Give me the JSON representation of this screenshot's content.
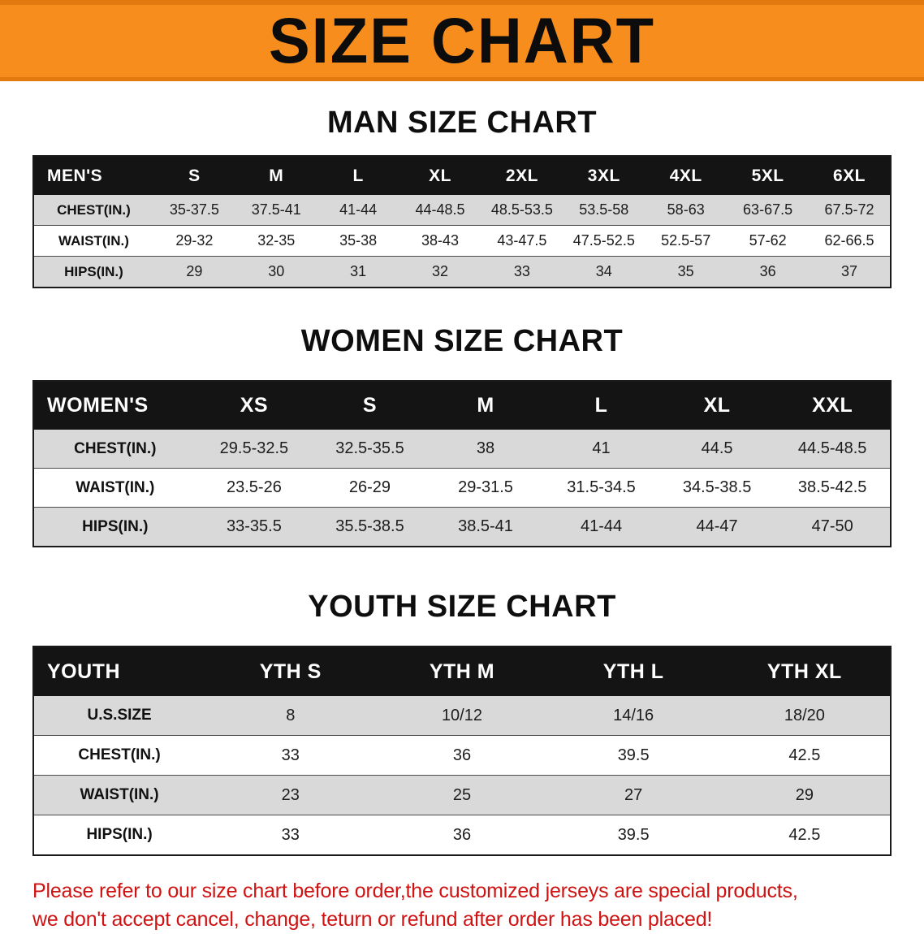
{
  "banner": {
    "title": "SIZE CHART"
  },
  "theme": {
    "banner_orange": "#f78d1d",
    "banner_edge_orange": "#e2790e",
    "table_header_black": "#141414",
    "row_gray": "#d9d9d9",
    "disclaimer_red": "#cf1212"
  },
  "men": {
    "heading": "MAN SIZE CHART",
    "header": [
      "MEN'S",
      "S",
      "M",
      "L",
      "XL",
      "2XL",
      "3XL",
      "4XL",
      "5XL",
      "6XL"
    ],
    "rows": [
      {
        "label": "CHEST(IN.)",
        "values": [
          "35-37.5",
          "37.5-41",
          "41-44",
          "44-48.5",
          "48.5-53.5",
          "53.5-58",
          "58-63",
          "63-67.5",
          "67.5-72"
        ]
      },
      {
        "label": "WAIST(IN.)",
        "values": [
          "29-32",
          "32-35",
          "35-38",
          "38-43",
          "43-47.5",
          "47.5-52.5",
          "52.5-57",
          "57-62",
          "62-66.5"
        ]
      },
      {
        "label": "HIPS(IN.)",
        "values": [
          "29",
          "30",
          "31",
          "32",
          "33",
          "34",
          "35",
          "36",
          "37"
        ]
      }
    ]
  },
  "women": {
    "heading": "WOMEN SIZE CHART",
    "header": [
      "WOMEN'S",
      "XS",
      "S",
      "M",
      "L",
      "XL",
      "XXL"
    ],
    "rows": [
      {
        "label": "CHEST(IN.)",
        "values": [
          "29.5-32.5",
          "32.5-35.5",
          "38",
          "41",
          "44.5",
          "44.5-48.5"
        ]
      },
      {
        "label": "WAIST(IN.)",
        "values": [
          "23.5-26",
          "26-29",
          "29-31.5",
          "31.5-34.5",
          "34.5-38.5",
          "38.5-42.5"
        ]
      },
      {
        "label": "HIPS(IN.)",
        "values": [
          "33-35.5",
          "35.5-38.5",
          "38.5-41",
          "41-44",
          "44-47",
          "47-50"
        ]
      }
    ]
  },
  "youth": {
    "heading": "YOUTH SIZE CHART",
    "header": [
      "YOUTH",
      "YTH S",
      "YTH M",
      "YTH L",
      "YTH XL"
    ],
    "rows": [
      {
        "label": "U.S.SIZE",
        "values": [
          "8",
          "10/12",
          "14/16",
          "18/20"
        ]
      },
      {
        "label": "CHEST(IN.)",
        "values": [
          "33",
          "36",
          "39.5",
          "42.5"
        ]
      },
      {
        "label": "WAIST(IN.)",
        "values": [
          "23",
          "25",
          "27",
          "29"
        ]
      },
      {
        "label": "HIPS(IN.)",
        "values": [
          "33",
          "36",
          "39.5",
          "42.5"
        ]
      }
    ]
  },
  "disclaimer": {
    "line1": "Please refer to our size chart before order,the customized jerseys are special products,",
    "line2": "we don't accept cancel, change, teturn or refund after order has been placed!"
  }
}
